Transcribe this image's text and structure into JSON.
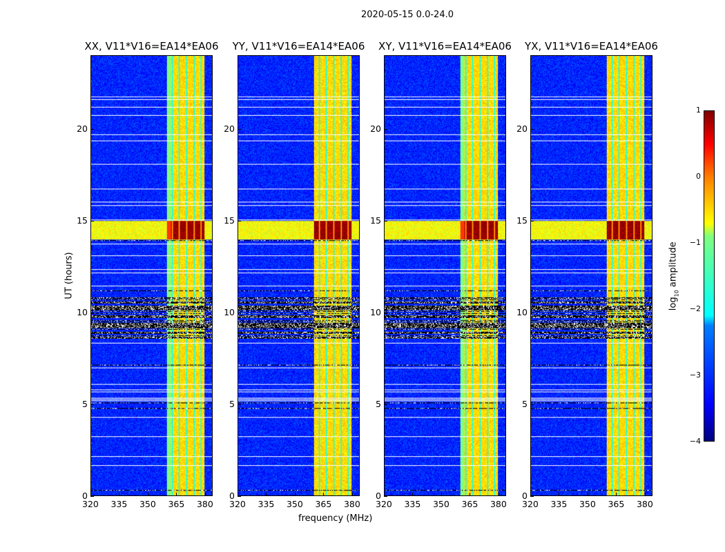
{
  "chart_data": {
    "type": "heatmap",
    "title": "2020-05-15 0.0-24.0",
    "xlabel": "frequency (MHz)",
    "ylabel": "UT (hours)",
    "xlim": [
      320,
      384
    ],
    "ylim": [
      0,
      24
    ],
    "xticks": [
      "320",
      "335",
      "350",
      "365",
      "380"
    ],
    "yticks": [
      "0",
      "5",
      "10",
      "15",
      "20"
    ],
    "panels": [
      {
        "title": "XX, V11*V16=EA14*EA06"
      },
      {
        "title": "YY, V11*V16=EA14*EA06"
      },
      {
        "title": "XY, V11*V16=EA14*EA06"
      },
      {
        "title": "YX, V11*V16=EA14*EA06"
      }
    ],
    "colorbar": {
      "label_prefix": "log",
      "label_sub": "10",
      "label_suffix": " amplitude",
      "ticks": [
        "1",
        "0",
        "−1",
        "−2",
        "−3",
        "−4"
      ],
      "range": [
        -4,
        1
      ],
      "colormap": "jet"
    },
    "bright_band_mhz": [
      360,
      380
    ],
    "bright_band_log_amplitude": -0.7,
    "background_log_amplitude": -3.2,
    "strong_rfi_hours": [
      14.0,
      15.0
    ]
  }
}
